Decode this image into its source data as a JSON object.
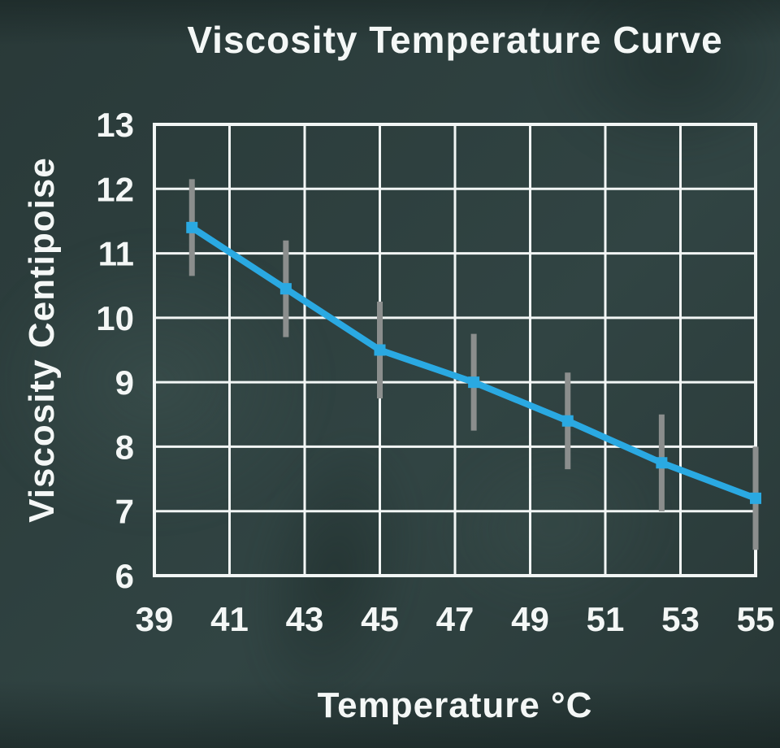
{
  "chart_data": {
    "type": "line",
    "title": "Viscosity Temperature Curve",
    "xlabel": "Temperature °C",
    "ylabel": "Viscosity Centipoise",
    "series": [
      {
        "name": "Viscosity",
        "x": [
          40,
          42.5,
          45,
          47.5,
          50,
          52.5,
          55
        ],
        "y": [
          11.4,
          10.45,
          9.5,
          9.0,
          8.4,
          7.75,
          7.2
        ],
        "y_error": [
          0.75,
          0.75,
          0.75,
          0.75,
          0.75,
          0.75,
          0.8
        ],
        "marker": "square"
      }
    ],
    "xticks": [
      39,
      41,
      43,
      45,
      47,
      49,
      51,
      53,
      55
    ],
    "yticks": [
      6,
      7,
      8,
      9,
      10,
      11,
      12,
      13
    ],
    "xlim": [
      39,
      55
    ],
    "ylim": [
      6,
      13
    ],
    "grid": true,
    "legend_position": "none",
    "colors": {
      "line": "#2aa9e2",
      "marker": "#2aa9e2",
      "error_bar": "#8b8e8d",
      "grid": "#f2f6f5",
      "text": "#f4f7f6",
      "background": "#2e403f"
    }
  }
}
